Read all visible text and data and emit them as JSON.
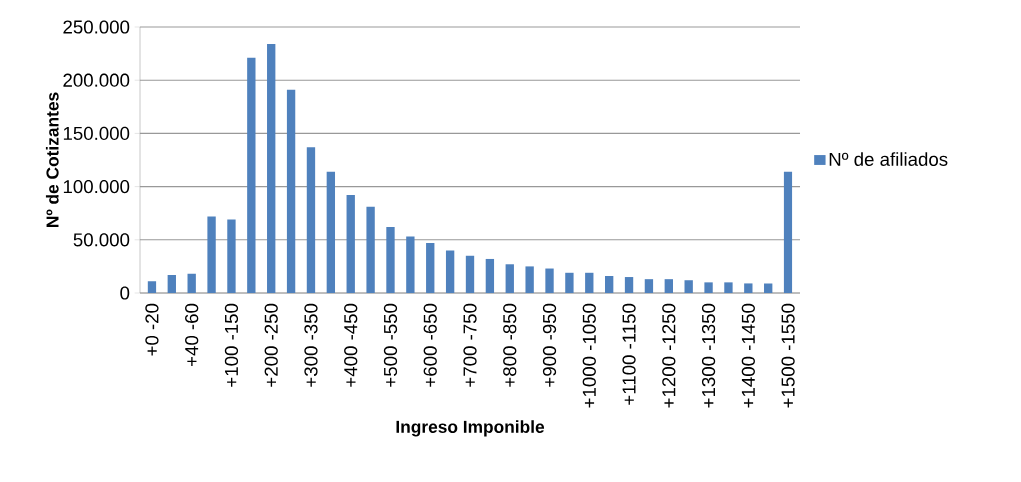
{
  "chart_data": {
    "type": "bar",
    "xlabel": "Ingreso Imponible",
    "ylabel": "Nº de Cotizantes",
    "categories": [
      "+0 -20",
      null,
      "+40 -60",
      null,
      "+100 -150",
      null,
      "+200 -250",
      null,
      "+300 -350",
      null,
      "+400 -450",
      null,
      "+500 -550",
      null,
      "+600 -650",
      null,
      "+700 -750",
      null,
      "+800 -850",
      null,
      "+900 -950",
      null,
      "+1000 -1050",
      null,
      "+1100 -1150",
      null,
      "+1200 -1250",
      null,
      "+1300 -1350",
      null,
      "+1400 -1450",
      null,
      "+1500 -1550"
    ],
    "series": [
      {
        "name": "Nº de afiliados",
        "color": "#4f81bd",
        "values": [
          11000,
          17000,
          18000,
          72000,
          69000,
          221000,
          234000,
          191000,
          137000,
          114000,
          92000,
          81000,
          62000,
          53000,
          47000,
          40000,
          35000,
          32000,
          27000,
          25000,
          23000,
          19000,
          19000,
          16000,
          15000,
          13000,
          13000,
          12000,
          10000,
          10000,
          9000,
          9000,
          114000
        ]
      }
    ],
    "ylim": [
      0,
      250000
    ],
    "yticks": [
      0,
      {
        "value": 50000,
        "label": "50.000"
      },
      {
        "value": 100000,
        "label": "100.000"
      },
      {
        "value": 150000,
        "label": "150.000"
      },
      {
        "value": 200000,
        "label": "200.000"
      },
      {
        "value": 250000,
        "label": "250.000"
      }
    ],
    "grid": "y",
    "legend": "right"
  }
}
